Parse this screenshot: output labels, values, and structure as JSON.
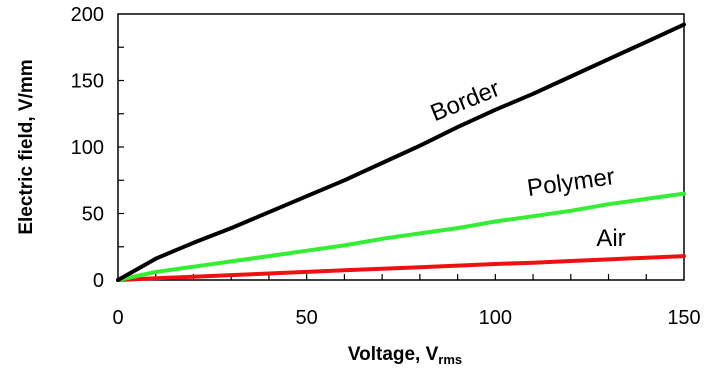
{
  "chart_data": {
    "type": "line",
    "title": "",
    "xlabel": "Voltage, V",
    "xlabel_sub": "rms",
    "ylabel": "Electric field, V/mm",
    "xlim": [
      0,
      150
    ],
    "ylim": [
      0,
      200
    ],
    "xticks": [
      0,
      50,
      100,
      150
    ],
    "yticks": [
      0,
      50,
      100,
      150,
      200
    ],
    "x_minor_step": 10,
    "y_minor_step": 25,
    "grid": false,
    "legend": "none",
    "series": [
      {
        "name": "Border",
        "color": "#000000",
        "x": [
          0,
          5,
          10,
          15,
          20,
          30,
          40,
          50,
          60,
          70,
          80,
          90,
          100,
          110,
          120,
          130,
          140,
          150
        ],
        "y": [
          0,
          8,
          16,
          22,
          28,
          39,
          51,
          63,
          75,
          88,
          101,
          115,
          128,
          140,
          153,
          166,
          179,
          192
        ]
      },
      {
        "name": "Polymer",
        "color": "#33ee33",
        "x": [
          0,
          5,
          10,
          20,
          30,
          40,
          50,
          60,
          70,
          80,
          90,
          100,
          110,
          120,
          130,
          140,
          150
        ],
        "y": [
          0,
          3,
          6,
          10,
          14,
          18,
          22,
          26,
          31,
          35,
          39,
          44,
          48,
          52,
          57,
          61,
          65
        ]
      },
      {
        "name": "Air",
        "color": "#ee1111",
        "x": [
          0,
          10,
          20,
          30,
          40,
          50,
          60,
          70,
          80,
          90,
          100,
          110,
          120,
          130,
          140,
          150
        ],
        "y": [
          0,
          1.3,
          2.5,
          3.7,
          4.9,
          6.1,
          7.3,
          8.4,
          9.6,
          10.8,
          12,
          13,
          14.3,
          15.5,
          16.8,
          18
        ]
      }
    ]
  }
}
